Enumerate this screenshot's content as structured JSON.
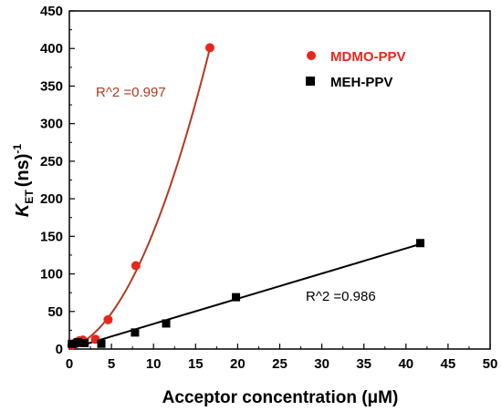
{
  "chart_data": {
    "type": "scatter",
    "xlabel": "Acceptor concentration (μM)",
    "ylabel": {
      "k": "K",
      "sub": "ET",
      "rest": "(ns)",
      "sup": "-1"
    },
    "xlim": [
      0,
      50
    ],
    "ylim": [
      0,
      450
    ],
    "x_ticks": [
      "0",
      "5",
      "10",
      "15",
      "20",
      "25",
      "30",
      "35",
      "40",
      "45",
      "50"
    ],
    "y_ticks": [
      "0",
      "50",
      "100",
      "150",
      "200",
      "250",
      "300",
      "350",
      "400",
      "450"
    ],
    "grid": false,
    "legend_position": "top-right",
    "series": [
      {
        "name": "MDMO-PPV",
        "color": "#e8261c",
        "fit_color": "#b33a1e",
        "marker": "circle",
        "points": [
          [
            0.3,
            5
          ],
          [
            0.8,
            9
          ],
          [
            1.2,
            11
          ],
          [
            1.6,
            12
          ],
          [
            3.1,
            13
          ],
          [
            4.6,
            39
          ],
          [
            7.9,
            111
          ],
          [
            16.7,
            401
          ]
        ],
        "fit": {
          "kind": "quadratic",
          "coeffs": [
            1.5,
            3.0,
            1.25
          ],
          "x_range": [
            0,
            16.7
          ]
        },
        "annotation": "R^2 =0.997"
      },
      {
        "name": "MEH-PPV",
        "color": "#000000",
        "fit_color": "#000000",
        "marker": "square",
        "points": [
          [
            0.3,
            7
          ],
          [
            1.0,
            9
          ],
          [
            1.8,
            8
          ],
          [
            3.8,
            7
          ],
          [
            7.8,
            22
          ],
          [
            11.5,
            34
          ],
          [
            19.8,
            69
          ],
          [
            41.7,
            141
          ]
        ],
        "fit": {
          "kind": "linear",
          "coeffs": [
            0,
            3.35
          ],
          "x_range": [
            0,
            41.7
          ]
        },
        "annotation": "R^2 =0.986"
      }
    ]
  }
}
